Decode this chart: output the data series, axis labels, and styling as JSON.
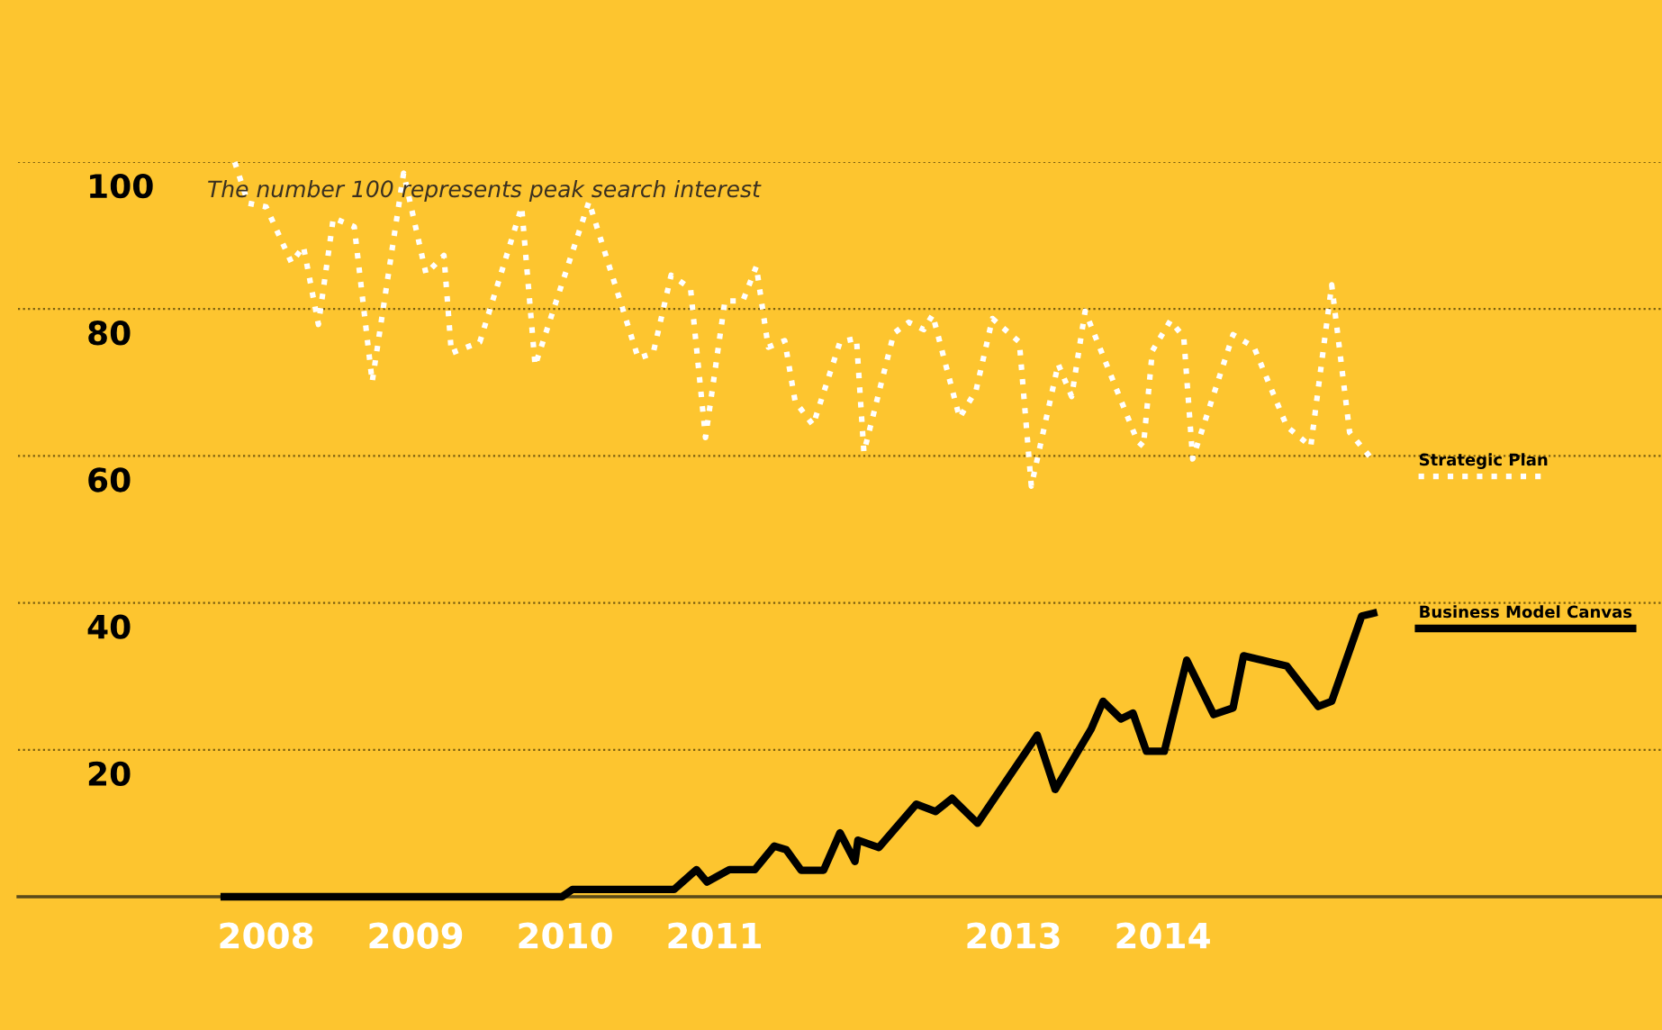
{
  "chart_data": {
    "type": "line",
    "xlim": [
      2006.34,
      2017.34
    ],
    "ylim": [
      0,
      100
    ],
    "xticks": [
      2008,
      2009,
      2010,
      2011,
      2013,
      2014
    ],
    "yticks": [
      20,
      40,
      60,
      80,
      100
    ],
    "grid": "y",
    "legend": false,
    "annotations": [
      "The number 100 represents peak search interest"
    ],
    "series": [
      {
        "name": "Strategic Plan",
        "color": "#ffffff",
        "line_style": "dotted",
        "x": [
          2007.79,
          2007.88,
          2008.0,
          2008.17,
          2008.25,
          2008.35,
          2008.45,
          2008.59,
          2008.71,
          2008.92,
          2009.07,
          2009.19,
          2009.24,
          2009.43,
          2009.71,
          2009.8,
          2010.16,
          2010.49,
          2010.59,
          2010.71,
          2010.84,
          2010.94,
          2011.07,
          2011.19,
          2011.28,
          2011.36,
          2011.47,
          2011.54,
          2011.66,
          2011.84,
          2011.95,
          2012.0,
          2012.2,
          2012.3,
          2012.4,
          2012.46,
          2012.64,
          2012.75,
          2012.86,
          2013.04,
          2013.12,
          2013.3,
          2013.39,
          2013.48,
          2013.83,
          2013.87,
          2013.93,
          2014.05,
          2014.14,
          2014.2,
          2014.47,
          2014.61,
          2014.83,
          2014.99,
          2015.13,
          2015.25,
          2015.41
        ],
        "values": [
          100,
          94.4,
          93.9,
          86.3,
          88.5,
          77.9,
          92.4,
          91.2,
          70.1,
          98.5,
          84.8,
          87.3,
          74,
          75.5,
          93.9,
          72.3,
          94.6,
          73.3,
          74,
          84.6,
          82.8,
          62.5,
          81.1,
          81.1,
          85.8,
          74.8,
          75.7,
          67.4,
          64.2,
          75.5,
          76,
          60.5,
          76.7,
          78.2,
          77.2,
          79.2,
          65.2,
          68.9,
          78.7,
          75.5,
          55.9,
          72.5,
          68.1,
          79.7,
          62,
          61.3,
          74.3,
          78.4,
          76.2,
          59.6,
          76.5,
          74.8,
          64,
          61.3,
          83.3,
          63.2,
          59.3
        ]
      },
      {
        "name": "Business Model Canvas",
        "color": "#000000",
        "line_style": "solid",
        "x": [
          2007.72,
          2009.98,
          2010.05,
          2010.73,
          2010.88,
          2010.95,
          2011.1,
          2011.27,
          2011.4,
          2011.48,
          2011.58,
          2011.73,
          2011.84,
          2011.94,
          2011.96,
          2012.1,
          2012.35,
          2012.48,
          2012.59,
          2012.76,
          2013.16,
          2013.28,
          2013.52,
          2013.6,
          2013.72,
          2013.8,
          2013.89,
          2014.01,
          2014.16,
          2014.34,
          2014.47,
          2014.54,
          2014.83,
          2015.04,
          2015.13,
          2015.33,
          2015.41
        ],
        "values": [
          0,
          0,
          1,
          1,
          3.7,
          2,
          3.7,
          3.7,
          6.9,
          6.4,
          3.6,
          3.6,
          8.7,
          4.8,
          7.7,
          6.7,
          12.6,
          11.6,
          13.4,
          10,
          22,
          14.6,
          22.8,
          26.6,
          24.2,
          25,
          19.8,
          19.8,
          32.2,
          24.8,
          25.7,
          32.8,
          31.4,
          25.9,
          26.6,
          38.2,
          38.6
        ]
      }
    ]
  }
}
